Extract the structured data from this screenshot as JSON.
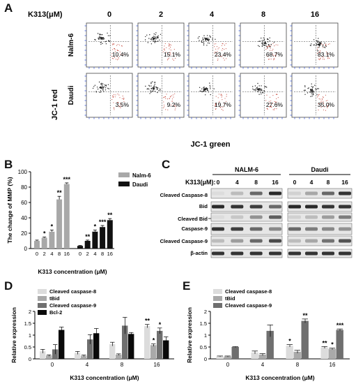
{
  "figure": {
    "panel_labels": [
      "A",
      "B",
      "C",
      "D",
      "E"
    ]
  },
  "panel_a": {
    "conc_label": "K313(μM)",
    "concentrations": [
      "0",
      "2",
      "4",
      "8",
      "16"
    ],
    "rows": [
      {
        "name": "Nalm-6",
        "percents": [
          "10.4%",
          "15.1%",
          "23.4%",
          "68.7%",
          "83.1%"
        ]
      },
      {
        "name": "Daudi",
        "percents": [
          "3.5%",
          "9.2%",
          "19.7%",
          "27.6%",
          "35.0%"
        ]
      }
    ],
    "y_label": "JC-1 red",
    "x_label": "JC-1 green"
  },
  "panel_c": {
    "conc_label": "K313(μM):",
    "groups": [
      {
        "name": "NALM-6",
        "lanes": [
          "0",
          "4",
          "8",
          "16"
        ]
      },
      {
        "name": "Daudi",
        "lanes": [
          "0",
          "4",
          "8",
          "16"
        ]
      }
    ],
    "row_labels": [
      "Cleaved Caspase-8",
      "Bid",
      "Cleaved Bid",
      "Caspase-9",
      "Cleaved Caspase-9",
      "β-actin"
    ]
  },
  "chart_data": [
    {
      "panel": "B",
      "type": "bar",
      "ylabel": "The change of MMP (%)",
      "xlabel": "K313 concentration (μM)",
      "ylim": [
        0,
        100
      ],
      "yticks": [
        0,
        20,
        40,
        60,
        80,
        100
      ],
      "legend_position": "top-right",
      "series": [
        {
          "name": "Nalm-6",
          "color": "#a8a8a8",
          "categories": [
            "0",
            "2",
            "4",
            "8",
            "16"
          ],
          "values": [
            10,
            14,
            22,
            64,
            84
          ],
          "errors": [
            1,
            1,
            2,
            4,
            1.5
          ],
          "sig": [
            "",
            "*",
            "*",
            "**",
            "***"
          ]
        },
        {
          "name": "Daudi",
          "color": "#111111",
          "categories": [
            "0",
            "2",
            "4",
            "8",
            "16"
          ],
          "values": [
            3.5,
            10,
            22,
            28,
            37
          ],
          "errors": [
            0.5,
            1,
            2,
            2,
            2
          ],
          "sig": [
            "",
            "**",
            "*",
            "***",
            "**"
          ]
        }
      ]
    },
    {
      "panel": "D",
      "type": "bar",
      "ylabel": "Relative expression",
      "xlabel": "K313 concentration (μM)",
      "ylim": [
        0,
        2.0
      ],
      "yticks": [
        0,
        0.5,
        1.0,
        1.5,
        2.0
      ],
      "legend_position": "top-left",
      "categories": [
        "0",
        "4",
        "8",
        "16"
      ],
      "series": [
        {
          "name": "Cleaved caspase-8",
          "color": "#dcdcdc",
          "values": [
            0.32,
            0.25,
            0.62,
            1.38
          ],
          "errors": [
            0.08,
            0.06,
            0.08,
            0.07
          ],
          "sig": [
            "",
            "",
            "",
            "**"
          ]
        },
        {
          "name": "tBid",
          "color": "#a9a9a9",
          "values": [
            0.14,
            0.13,
            0.18,
            0.58
          ],
          "errors": [
            0.03,
            0.03,
            0.03,
            0.05
          ],
          "sig": [
            "",
            "",
            "",
            "*"
          ]
        },
        {
          "name": "Cleaved caspase-9",
          "color": "#6f6f6f",
          "values": [
            0.4,
            0.82,
            1.4,
            1.18
          ],
          "errors": [
            0.2,
            0.2,
            0.35,
            0.12
          ],
          "sig": [
            "",
            "",
            "",
            "*"
          ]
        },
        {
          "name": "Bcl-2",
          "color": "#0a0a0a",
          "values": [
            1.22,
            1.08,
            1.05,
            0.78
          ],
          "errors": [
            0.12,
            0.2,
            0.06,
            0.15
          ],
          "sig": [
            "",
            "",
            "",
            ""
          ]
        }
      ]
    },
    {
      "panel": "E",
      "type": "bar",
      "ylabel": "Relative expression",
      "xlabel": "K313 concentration (μM)",
      "ylim": [
        0,
        2.0
      ],
      "yticks": [
        0,
        0.5,
        1.0,
        1.5,
        2.0
      ],
      "legend_position": "top-left",
      "categories": [
        "0",
        "4",
        "8",
        "16"
      ],
      "series": [
        {
          "name": "Cleaved caspase-8",
          "color": "#dcdcdc",
          "values": [
            0.1,
            0.27,
            0.55,
            0.48
          ],
          "errors": [
            0.02,
            0.06,
            0.05,
            0.04
          ],
          "sig": [
            "",
            "",
            "*",
            "**"
          ]
        },
        {
          "name": "tBid",
          "color": "#a9a9a9",
          "values": [
            0.1,
            0.18,
            0.3,
            0.42
          ],
          "errors": [
            0.02,
            0.04,
            0.06,
            0.03
          ],
          "sig": [
            "",
            "",
            "",
            "*"
          ]
        },
        {
          "name": "Cleaved caspase-9",
          "color": "#6f6f6f",
          "values": [
            0.5,
            1.18,
            1.6,
            1.22
          ],
          "errors": [
            0.02,
            0.25,
            0.08,
            0.04
          ],
          "sig": [
            "",
            "",
            "**",
            "***"
          ]
        }
      ]
    }
  ]
}
